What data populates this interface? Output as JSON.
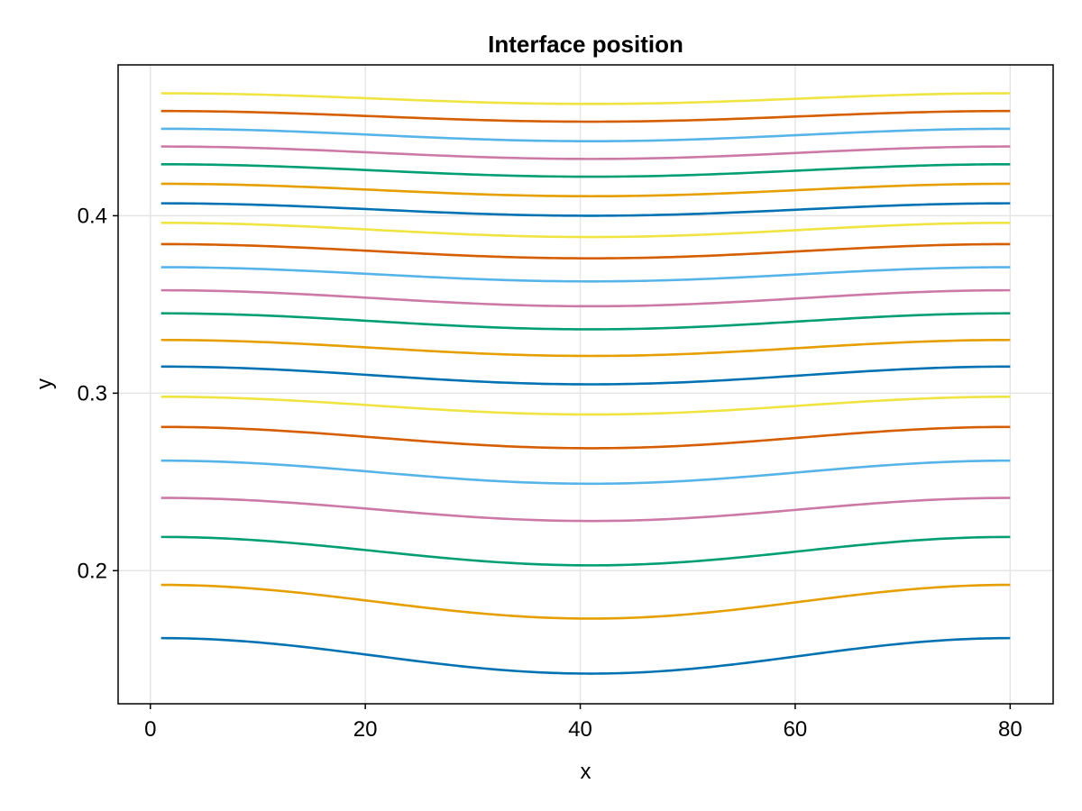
{
  "chart_data": {
    "type": "line",
    "title": "Interface position",
    "xlabel": "x",
    "ylabel": "y",
    "xlim": [
      -3,
      84
    ],
    "ylim": [
      0.125,
      0.485
    ],
    "xticks": [
      0,
      20,
      40,
      60,
      80
    ],
    "xtick_labels": [
      "0",
      "20",
      "40",
      "60",
      "80"
    ],
    "yticks": [
      0.2,
      0.3,
      0.4
    ],
    "ytick_labels": [
      "0.2",
      "0.3",
      "0.4"
    ],
    "grid": true,
    "legend": "none",
    "x_range": [
      1,
      80
    ],
    "trough_x": 41,
    "series": [
      {
        "color": "#0072B2",
        "edge": 0.162,
        "trough": 0.142
      },
      {
        "color": "#E69F00",
        "edge": 0.192,
        "trough": 0.173
      },
      {
        "color": "#009E73",
        "edge": 0.219,
        "trough": 0.203
      },
      {
        "color": "#CC79A7",
        "edge": 0.241,
        "trough": 0.228
      },
      {
        "color": "#56B4E9",
        "edge": 0.262,
        "trough": 0.249
      },
      {
        "color": "#D55E00",
        "edge": 0.281,
        "trough": 0.269
      },
      {
        "color": "#F0E442",
        "edge": 0.298,
        "trough": 0.288
      },
      {
        "color": "#0072B2",
        "edge": 0.315,
        "trough": 0.305
      },
      {
        "color": "#E69F00",
        "edge": 0.33,
        "trough": 0.321
      },
      {
        "color": "#009E73",
        "edge": 0.345,
        "trough": 0.336
      },
      {
        "color": "#CC79A7",
        "edge": 0.358,
        "trough": 0.349
      },
      {
        "color": "#56B4E9",
        "edge": 0.371,
        "trough": 0.363
      },
      {
        "color": "#D55E00",
        "edge": 0.384,
        "trough": 0.376
      },
      {
        "color": "#F0E442",
        "edge": 0.396,
        "trough": 0.388
      },
      {
        "color": "#0072B2",
        "edge": 0.407,
        "trough": 0.4
      },
      {
        "color": "#E69F00",
        "edge": 0.418,
        "trough": 0.411
      },
      {
        "color": "#009E73",
        "edge": 0.429,
        "trough": 0.422
      },
      {
        "color": "#CC79A7",
        "edge": 0.439,
        "trough": 0.432
      },
      {
        "color": "#56B4E9",
        "edge": 0.449,
        "trough": 0.442
      },
      {
        "color": "#D55E00",
        "edge": 0.459,
        "trough": 0.453
      },
      {
        "color": "#F0E442",
        "edge": 0.469,
        "trough": 0.463
      }
    ]
  }
}
